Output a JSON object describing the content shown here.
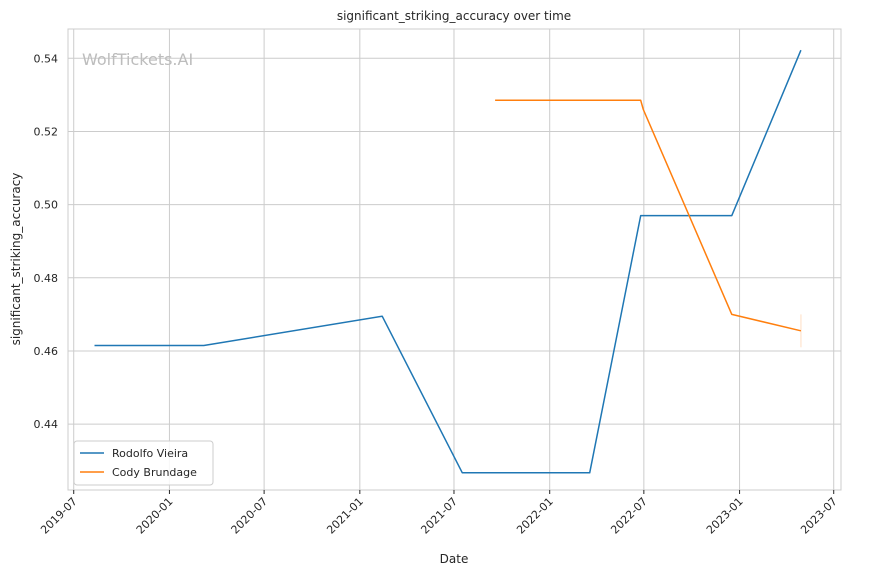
{
  "chart_data": {
    "type": "line",
    "title": "significant_striking_accuracy over time",
    "xlabel": "Date",
    "ylabel": "significant_striking_accuracy",
    "watermark": "WolfTickets.AI",
    "x_ticks": [
      "2019-07",
      "2020-01",
      "2020-07",
      "2021-01",
      "2021-07",
      "2022-01",
      "2022-07",
      "2023-01",
      "2023-07"
    ],
    "y_ticks": [
      "0.44",
      "0.46",
      "0.48",
      "0.50",
      "0.52",
      "0.54"
    ],
    "xlim": [
      "2019-06-20",
      "2023-07-15"
    ],
    "ylim": [
      0.422,
      0.548
    ],
    "grid": true,
    "legend": "lower-left",
    "series": [
      {
        "name": "Rodolfo Vieira",
        "color": "#1f77b4",
        "points": [
          [
            "2019-08-10",
            0.4615
          ],
          [
            "2020-03-07",
            0.4615
          ],
          [
            "2021-02-13",
            0.4695
          ],
          [
            "2021-07-17",
            0.4267
          ],
          [
            "2022-03-19",
            0.4267
          ],
          [
            "2022-06-25",
            0.497
          ],
          [
            "2022-12-17",
            0.497
          ],
          [
            "2023-04-29",
            0.5422
          ]
        ]
      },
      {
        "name": "Cody Brundage",
        "color": "#ff7f0e",
        "points": [
          [
            "2021-09-18",
            0.5285
          ],
          [
            "2022-06-25",
            0.5285
          ],
          [
            "2022-06-30",
            0.526
          ],
          [
            "2022-12-17",
            0.47
          ],
          [
            "2023-04-29",
            0.4655
          ]
        ]
      }
    ]
  }
}
